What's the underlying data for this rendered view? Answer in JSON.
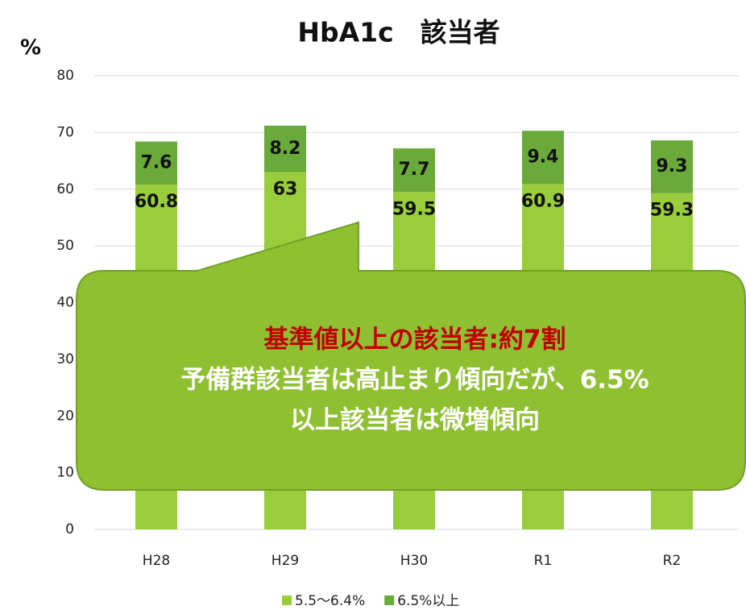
{
  "chart_data": {
    "type": "stacked_bar",
    "title": "HbA1c　該当者",
    "y_label": "%",
    "categories": [
      "H28",
      "H29",
      "H30",
      "R1",
      "R2"
    ],
    "series": [
      {
        "name": "5.5〜6.4%",
        "color": "#9acd3c",
        "values": [
          60.8,
          63,
          59.5,
          60.9,
          59.3
        ]
      },
      {
        "name": "6.5%以上",
        "color": "#6aaa3a",
        "values": [
          7.6,
          8.2,
          7.7,
          9.4,
          9.3
        ]
      }
    ],
    "ylim": [
      0,
      80
    ],
    "yticks": [
      0,
      10,
      20,
      30,
      40,
      50,
      60,
      70,
      80
    ],
    "grid": true,
    "legend": "bottom",
    "annotations": [
      "基準値以上の該当者:約7割",
      "予備群該当者は高止まり傾向だが、6.5%",
      "以上該当者は微増傾向"
    ]
  }
}
